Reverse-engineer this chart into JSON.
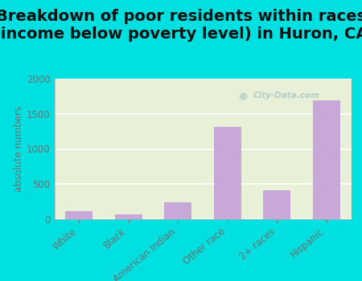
{
  "title": "Breakdown of poor residents within races\n(income below poverty level) in Huron, CA",
  "categories": [
    "White",
    "Black",
    "American Indian",
    "Other race",
    "2+ races",
    "Hispanic"
  ],
  "values": [
    110,
    70,
    240,
    1320,
    410,
    1690
  ],
  "bar_color": "#c8a8d8",
  "ylabel": "absolute numbers",
  "ylim": [
    0,
    2000
  ],
  "yticks": [
    0,
    500,
    1000,
    1500,
    2000
  ],
  "bg_color": "#00e0e0",
  "plot_bg_color": "#e8f0d8",
  "title_fontsize": 14,
  "label_fontsize": 8.5,
  "tick_color": "#707070",
  "watermark": "City-Data.com"
}
